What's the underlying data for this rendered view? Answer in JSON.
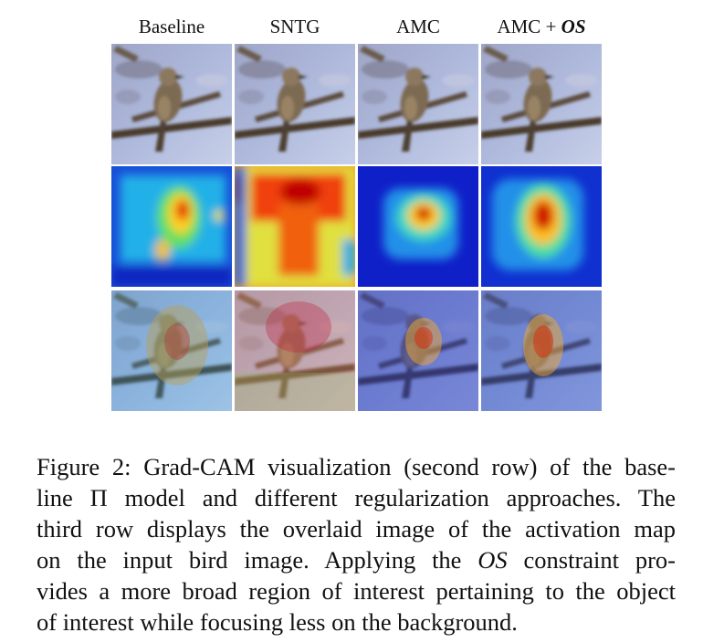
{
  "figure": {
    "columns": [
      {
        "label": "Baseline",
        "suffix": ""
      },
      {
        "label": "SNTG",
        "suffix": ""
      },
      {
        "label": "AMC",
        "suffix": ""
      },
      {
        "label": "AMC + ",
        "suffix": "OS"
      }
    ],
    "rows": [
      "input",
      "gradcam",
      "overlay"
    ],
    "colors": {
      "sky": "#aeb9dc",
      "branch": "#4a3a2c",
      "bird": "#7d6a52",
      "cold": "#1020c8",
      "hot": "#c81010"
    }
  },
  "caption": {
    "lines": [
      "Figure 2: Grad-CAM visualization (second row) of the base-",
      "line Π model and different regularization approaches. The",
      "third row displays the overlaid image of the activation map",
      [
        "on the input bird image. Applying the ",
        "OS",
        " constraint pro-"
      ],
      "vides a more broad region of interest pertaining to the object",
      "of interest while focusing less on the background."
    ]
  }
}
